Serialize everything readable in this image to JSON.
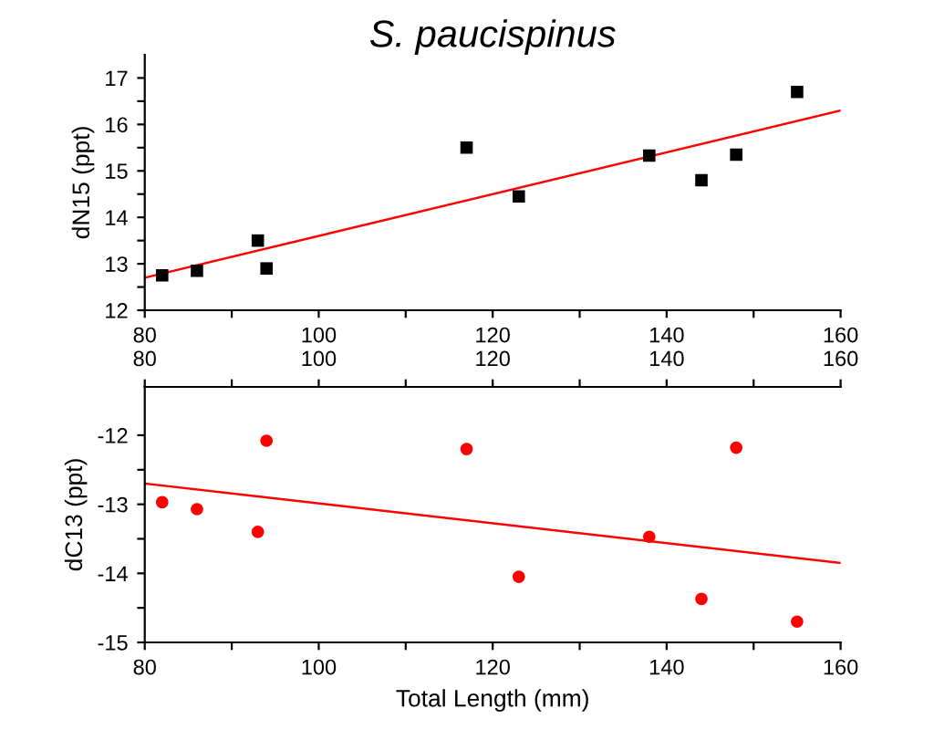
{
  "chart_data": [
    {
      "type": "scatter",
      "title": "S. paucispinus",
      "ylabel": "dN15 (ppt)",
      "xlim": [
        80,
        160
      ],
      "ylim": [
        12,
        17.5
      ],
      "xticks": [
        80,
        {
          "value": 90,
          "label": null
        },
        100,
        {
          "value": 110,
          "label": null
        },
        120,
        {
          "value": 130,
          "label": null
        },
        140,
        {
          "value": 150,
          "label": null
        },
        160
      ],
      "yticks": [
        12,
        {
          "value": 12.5,
          "label": null
        },
        13,
        {
          "value": 13.5,
          "label": null
        },
        14,
        {
          "value": 14.5,
          "label": null
        },
        15,
        {
          "value": 15.5,
          "label": null
        },
        16,
        {
          "value": 16.5,
          "label": null
        },
        17
      ],
      "grid": false,
      "series": [
        {
          "color": "#000000",
          "marker": "square",
          "x": [
            82,
            86,
            93,
            94,
            117,
            123,
            138,
            144,
            148,
            155
          ],
          "values": [
            12.75,
            12.85,
            13.5,
            12.9,
            15.5,
            14.45,
            15.33,
            14.8,
            15.35,
            16.7
          ]
        },
        {
          "type": "line",
          "color": "#ff0000",
          "marker": "none",
          "x": [
            80,
            160
          ],
          "values": [
            12.7,
            16.3
          ]
        }
      ]
    },
    {
      "type": "scatter",
      "xlabel": "Total Length (mm)",
      "ylabel": "dC13 (ppt)",
      "xlim": [
        80,
        160
      ],
      "ylim": [
        -15,
        -11.3
      ],
      "xticks": [
        80,
        {
          "value": 90,
          "label": null
        },
        100,
        {
          "value": 110,
          "label": null
        },
        120,
        {
          "value": 130,
          "label": null
        },
        140,
        {
          "value": 150,
          "label": null
        },
        160
      ],
      "x2lim": [
        80,
        160
      ],
      "x2ticks": [
        80,
        {
          "value": 90,
          "label": null
        },
        100,
        {
          "value": 110,
          "label": null
        },
        120,
        {
          "value": 130,
          "label": null
        },
        140,
        {
          "value": 150,
          "label": null
        },
        160
      ],
      "yticks": [
        -15,
        {
          "value": -14.5,
          "label": null
        },
        -14,
        {
          "value": -13.5,
          "label": null
        },
        -13,
        {
          "value": -12.5,
          "label": null
        },
        -12
      ],
      "grid": false,
      "series": [
        {
          "color": "#ff0000",
          "marker": "circle",
          "x": [
            82,
            86,
            93,
            94,
            117,
            123,
            138,
            144,
            148,
            155
          ],
          "values": [
            -12.97,
            -13.07,
            -13.4,
            -12.08,
            -12.2,
            -14.05,
            -13.47,
            -14.37,
            -12.18,
            -14.7
          ]
        },
        {
          "type": "line",
          "color": "#ff0000",
          "marker": "none",
          "x": [
            80,
            160
          ],
          "values": [
            -12.7,
            -13.85
          ]
        }
      ]
    }
  ]
}
